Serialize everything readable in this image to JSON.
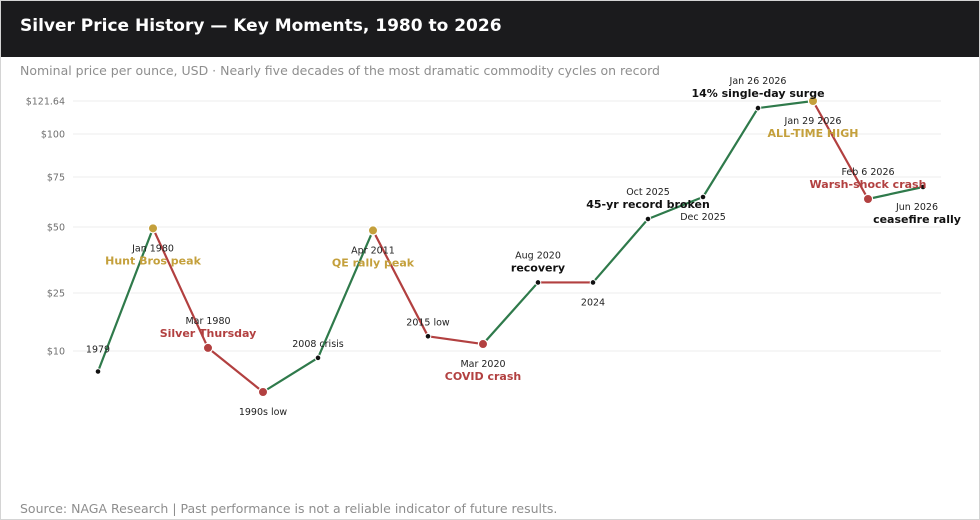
{
  "header": {
    "title": "Silver Price History — Key Moments, 1980 to 2026",
    "subtitle": "Nominal price per ounce, USD · Nearly five decades of the most dramatic commodity cycles on record"
  },
  "footer": {
    "text": "Source: NAGA Research  |  Past performance is not a reliable indicator of future results."
  },
  "colors": {
    "up": "#2f7a4b",
    "down": "#b24040",
    "peak": "#c4a03c",
    "point": "#111111",
    "text_dark": "#111111",
    "title_bar": "#1b1b1d"
  },
  "chart_data": {
    "type": "line",
    "y_ticks": [
      {
        "value": 10,
        "label": "$10"
      },
      {
        "value": 25,
        "label": "$25"
      },
      {
        "value": 50,
        "label": "$50"
      },
      {
        "value": 75,
        "label": "$75"
      },
      {
        "value": 100,
        "label": "$100"
      },
      {
        "value": 121.64,
        "label": "$121.64"
      }
    ],
    "grid": true,
    "points": [
      {
        "date": "1979",
        "title": "",
        "value": 7,
        "kind": "normal",
        "color": "",
        "pos": "left"
      },
      {
        "date": "Jan 1980",
        "title": "Hunt Bros peak",
        "value": 49.5,
        "kind": "peak",
        "color": "peak",
        "pos": "below"
      },
      {
        "date": "Mar 1980",
        "title": "Silver Thursday",
        "value": 10.8,
        "kind": "crash",
        "color": "down",
        "pos": "above"
      },
      {
        "date": "1990s low",
        "title": "",
        "value": 4,
        "kind": "crash",
        "color": "",
        "pos": "below"
      },
      {
        "date": "2008 crisis",
        "title": "",
        "value": 9,
        "kind": "normal",
        "color": "",
        "pos": "above"
      },
      {
        "date": "Apr 2011",
        "title": "QE rally peak",
        "value": 48.7,
        "kind": "peak",
        "color": "peak",
        "pos": "below"
      },
      {
        "date": "2015 low",
        "title": "",
        "value": 13.8,
        "kind": "normal",
        "color": "",
        "pos": "above"
      },
      {
        "date": "Mar 2020",
        "title": "COVID crash",
        "value": 11.8,
        "kind": "crash",
        "color": "down",
        "pos": "below"
      },
      {
        "date": "Aug 2020",
        "title": "recovery",
        "value": 29,
        "kind": "normal",
        "color": "",
        "pos": "above"
      },
      {
        "date": "2024",
        "title": "",
        "value": 29,
        "kind": "normal",
        "color": "",
        "pos": "below"
      },
      {
        "date": "Oct 2025",
        "title": "45-yr record broken",
        "value": 54,
        "kind": "normal",
        "color": "",
        "pos": "above"
      },
      {
        "date": "Dec 2025",
        "title": "",
        "value": 65,
        "kind": "normal",
        "color": "",
        "pos": "below"
      },
      {
        "date": "Jan 26 2026",
        "title": "14% single-day surge",
        "value": 117,
        "kind": "normal",
        "color": "",
        "pos": "above"
      },
      {
        "date": "Jan 29 2026",
        "title": "ALL-TIME HIGH",
        "value": 121.64,
        "kind": "peak",
        "color": "peak",
        "pos": "below"
      },
      {
        "date": "Feb 6 2026",
        "title": "Warsh-shock crash",
        "value": 64,
        "kind": "crash",
        "color": "down",
        "pos": "above"
      },
      {
        "date": "Jun 2026",
        "title": "ceasefire rally",
        "value": 70,
        "kind": "normal",
        "color": "",
        "pos": "below"
      }
    ]
  }
}
